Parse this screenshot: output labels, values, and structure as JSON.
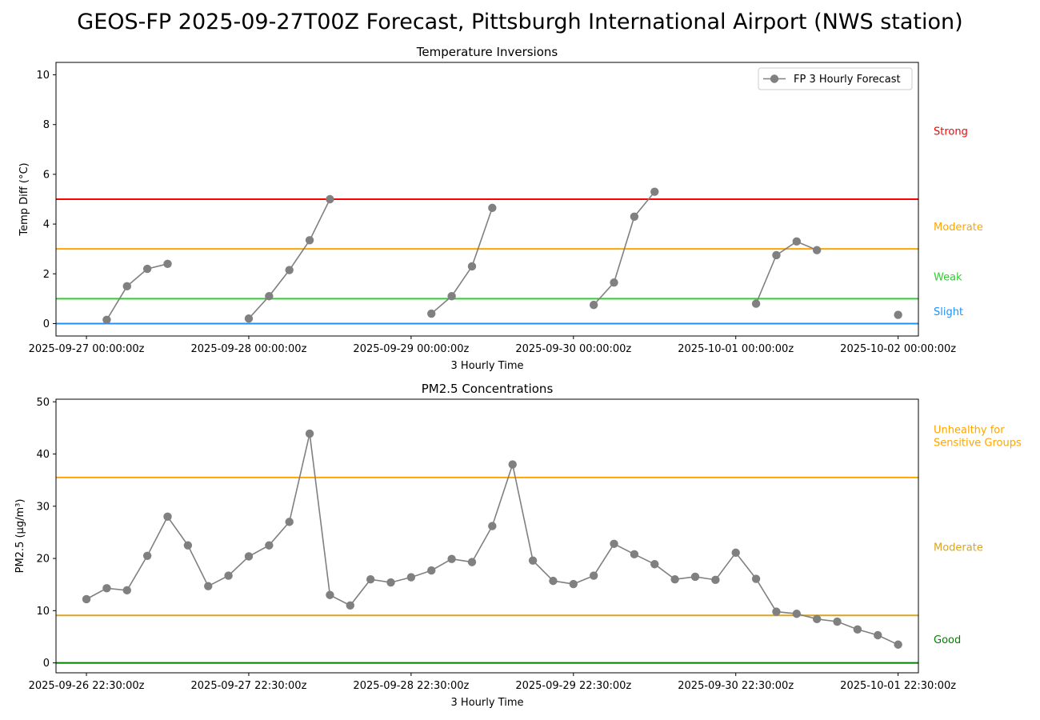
{
  "title": "GEOS-FP 2025-09-27T00Z Forecast, Pittsburgh International Airport (NWS station)",
  "chart_data": [
    {
      "type": "line",
      "title": "Temperature Inversions",
      "xlabel": "3 Hourly Time",
      "ylabel": "Temp Diff (°C)",
      "ylim": [
        -0.5,
        10.5
      ],
      "yticks": [
        0,
        2,
        4,
        6,
        8,
        10
      ],
      "xlim_hours": [
        -4.5,
        123
      ],
      "xticks": [
        {
          "hour": 0,
          "label": "2025-09-27 00:00:00z"
        },
        {
          "hour": 24,
          "label": "2025-09-28 00:00:00z"
        },
        {
          "hour": 48,
          "label": "2025-09-29 00:00:00z"
        },
        {
          "hour": 72,
          "label": "2025-09-30 00:00:00z"
        },
        {
          "hour": 96,
          "label": "2025-10-01 00:00:00z"
        },
        {
          "hour": 120,
          "label": "2025-10-02 00:00:00z"
        }
      ],
      "legend": {
        "label": "FP 3 Hourly Forecast",
        "position": "top-right"
      },
      "series": [
        {
          "name": "FP 3 Hourly Forecast",
          "color": "#808080",
          "segments": [
            [
              [
                3,
                0.15
              ],
              [
                6,
                1.5
              ],
              [
                9,
                2.2
              ],
              [
                12,
                2.4
              ]
            ],
            [
              [
                24,
                0.2
              ],
              [
                27,
                1.1
              ],
              [
                30,
                2.15
              ],
              [
                33,
                3.35
              ],
              [
                36,
                5.0
              ]
            ],
            [
              [
                51,
                0.4
              ],
              [
                54,
                1.1
              ],
              [
                57,
                2.3
              ],
              [
                60,
                4.65
              ]
            ],
            [
              [
                75,
                0.75
              ],
              [
                78,
                1.65
              ],
              [
                81,
                4.3
              ],
              [
                84,
                5.3
              ]
            ],
            [
              [
                99,
                0.8
              ],
              [
                102,
                2.75
              ],
              [
                105,
                3.3
              ],
              [
                108,
                2.95
              ]
            ],
            [
              [
                120,
                0.35
              ]
            ]
          ]
        }
      ],
      "thresholds": [
        {
          "label": "Strong",
          "y": 5,
          "color": "#ff0000",
          "label_y": 7.75
        },
        {
          "label": "Moderate",
          "y": 3,
          "color": "#ffa500",
          "label_y": 3.9
        },
        {
          "label": "Weak",
          "y": 1,
          "color": "#32cd32",
          "label_y": 1.9
        },
        {
          "label": "Slight",
          "y": 0,
          "color": "#1e90ff",
          "label_y": 0.5
        }
      ]
    },
    {
      "type": "line",
      "title": "PM2.5 Concentrations",
      "xlabel": "3 Hourly Time",
      "ylabel": "PM2.5 (μg/m³)",
      "ylim": [
        -1.9,
        50.5
      ],
      "yticks": [
        0,
        10,
        20,
        30,
        40,
        50
      ],
      "xlim_hours": [
        -4.5,
        123
      ],
      "xticks": [
        {
          "hour": 0,
          "label": "2025-09-26 22:30:00z"
        },
        {
          "hour": 24,
          "label": "2025-09-27 22:30:00z"
        },
        {
          "hour": 48,
          "label": "2025-09-28 22:30:00z"
        },
        {
          "hour": 72,
          "label": "2025-09-29 22:30:00z"
        },
        {
          "hour": 96,
          "label": "2025-09-30 22:30:00z"
        },
        {
          "hour": 120,
          "label": "2025-10-01 22:30:00z"
        }
      ],
      "series": [
        {
          "name": "FP 3 Hourly Forecast",
          "color": "#808080",
          "values": [
            12.2,
            14.3,
            13.9,
            20.5,
            28.0,
            22.5,
            14.7,
            16.7,
            20.4,
            22.5,
            27.0,
            43.9,
            13.0,
            11.0,
            16.0,
            15.4,
            16.4,
            17.7,
            19.9,
            19.3,
            26.2,
            38.0,
            19.6,
            15.7,
            15.1,
            16.7,
            22.8,
            20.8,
            18.9,
            16.0,
            16.5,
            15.9,
            21.1,
            16.1,
            9.8,
            9.4,
            8.4,
            7.9,
            6.4,
            5.3,
            3.5
          ]
        }
      ],
      "thresholds": [
        {
          "label": "Unhealthy for\nSensitive Groups",
          "y": 35.5,
          "color": "#ffa500",
          "label_y": 43.5
        },
        {
          "label": "Moderate",
          "y": 9.1,
          "color": "#daa520",
          "label_y": 22.2
        },
        {
          "label": "Good",
          "y": 0,
          "color": "#008000",
          "label_y": 4.5
        }
      ]
    }
  ]
}
